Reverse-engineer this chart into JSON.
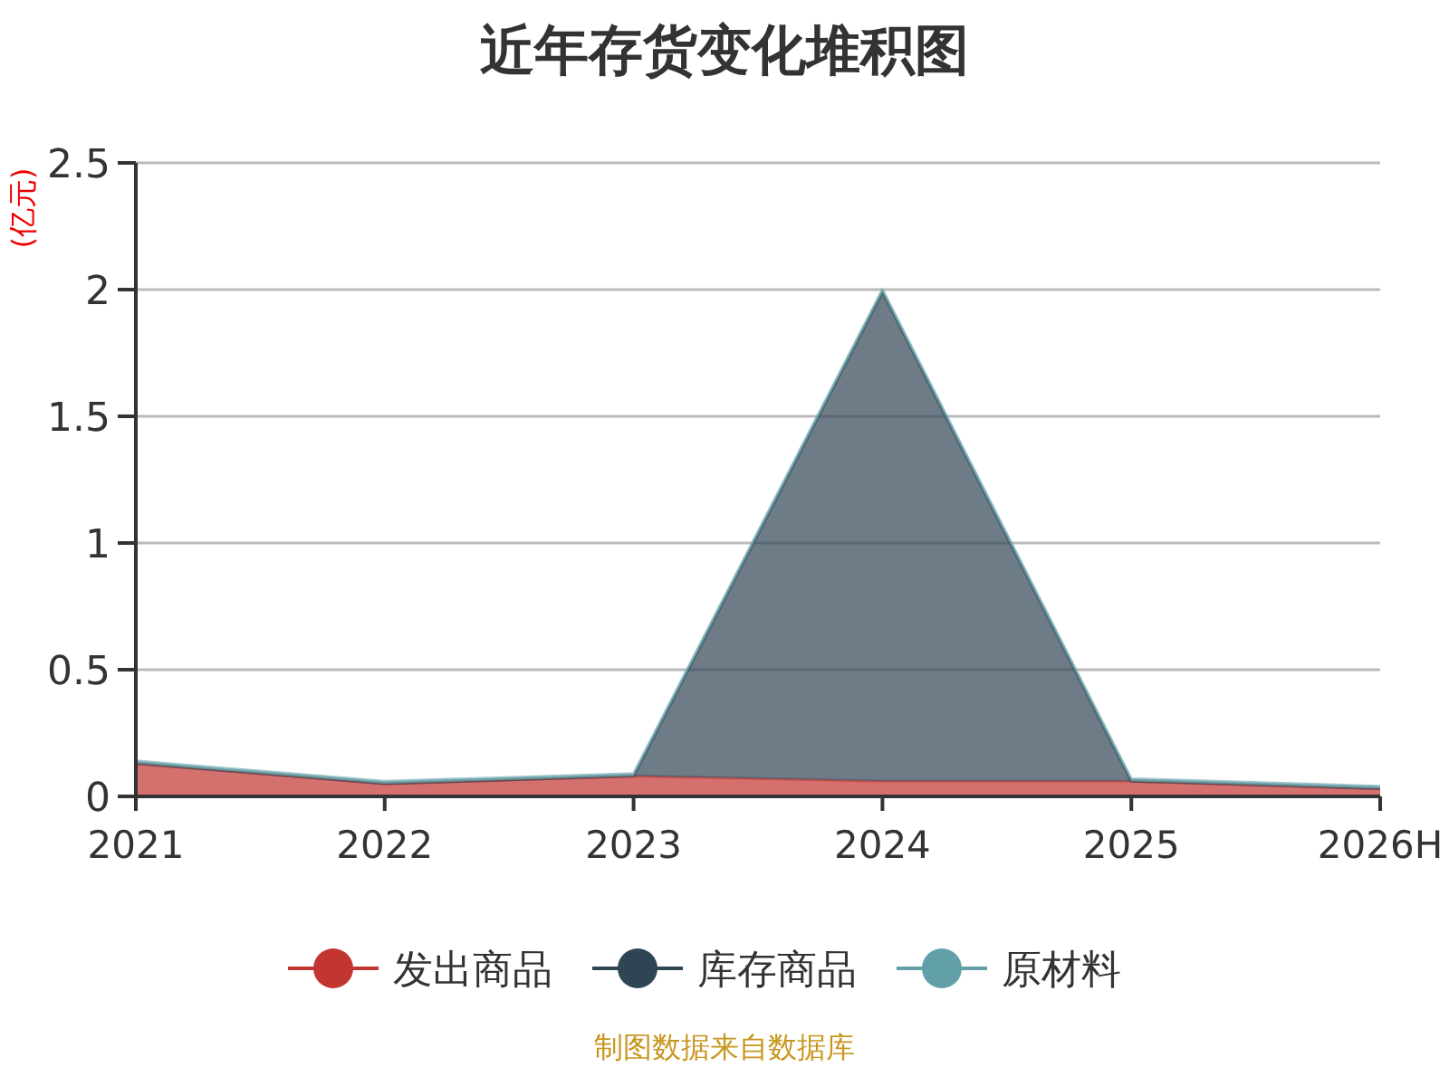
{
  "chart_data": {
    "type": "area",
    "title": "近年存货变化堆积图",
    "ylabel": "(亿元)",
    "stacked": true,
    "grid": "y",
    "legend": "bottom",
    "categories": [
      "2021",
      "2022",
      "2023",
      "2024",
      "2025",
      "2026H"
    ],
    "series": [
      {
        "name": "发出商品",
        "color": "#c23531",
        "values": [
          0.13,
          0.05,
          0.08,
          0.06,
          0.06,
          0.03
        ]
      },
      {
        "name": "库存商品",
        "color": "#2f4554",
        "values": [
          0,
          0,
          0,
          1.93,
          0,
          0
        ]
      },
      {
        "name": "原材料",
        "color": "#61a0a8",
        "values": [
          0.01,
          0.01,
          0.01,
          0.01,
          0.01,
          0.01
        ]
      }
    ],
    "ylim": [
      0,
      2.5
    ],
    "yticks": [
      0,
      0.5,
      1,
      1.5,
      2,
      2.5
    ],
    "annotations": [
      "制图数据来自数据库"
    ]
  }
}
